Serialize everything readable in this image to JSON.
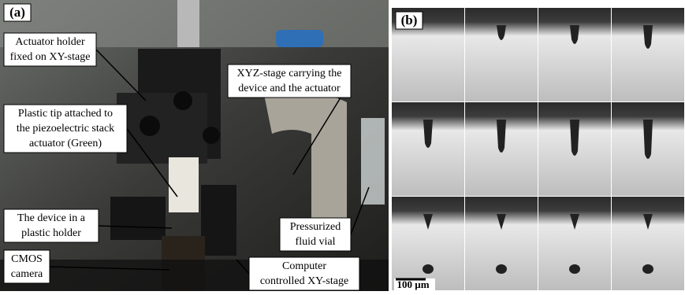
{
  "panel_a": {
    "label": "(a)",
    "annotations": [
      {
        "lines": [
          "Actuator holder",
          "fixed on XY-stage"
        ]
      },
      {
        "lines": [
          "XYZ-stage carrying the",
          "device and the actuator"
        ]
      },
      {
        "lines": [
          "Plastic tip attached to",
          "the piezoelectric stack",
          "actuator (Green)"
        ]
      },
      {
        "lines": [
          "The device in a",
          "plastic holder"
        ]
      },
      {
        "lines": [
          "Pressurized",
          "fluid vial"
        ]
      },
      {
        "lines": [
          "CMOS",
          "camera"
        ]
      },
      {
        "lines": [
          "Computer",
          "controlled XY-stage"
        ]
      }
    ]
  },
  "panel_b": {
    "label": "(b)",
    "scale_bar": "100 µm"
  }
}
